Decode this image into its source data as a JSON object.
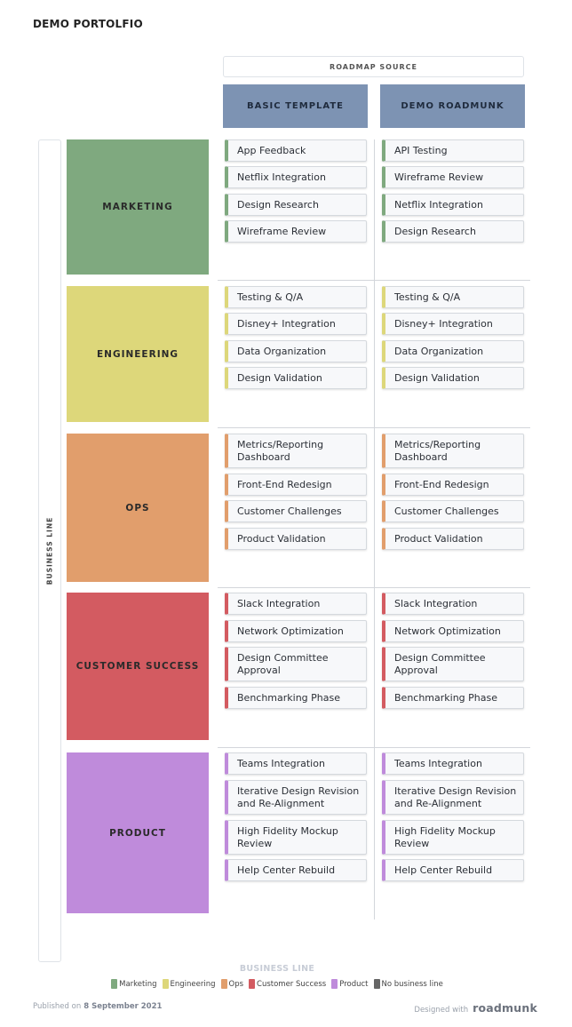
{
  "page_title": "DEMO PORTOLFIO",
  "source_header": "ROADMAP SOURCE",
  "columns": [
    "BASIC TEMPLATE",
    "DEMO ROADMUNK"
  ],
  "side_label": "BUSINESS LINE",
  "groups": [
    {
      "name": "MARKETING",
      "color": "#7fa97f",
      "left": [
        "App Feedback",
        "Netflix Integration",
        "Design Research",
        "Wireframe Review"
      ],
      "right": [
        "API Testing",
        "Wireframe Review",
        "Netflix Integration",
        "Design Research"
      ]
    },
    {
      "name": "ENGINEERING",
      "color": "#ddd77a",
      "left": [
        "Testing & Q/A",
        "Disney+ Integration",
        "Data Organization",
        "Design Validation"
      ],
      "right": [
        "Testing & Q/A",
        "Disney+ Integration",
        "Data Organization",
        "Design Validation"
      ]
    },
    {
      "name": "OPS",
      "color": "#e19e6c",
      "left": [
        "Metrics/Reporting Dashboard",
        "Front-End Redesign",
        "Customer Challenges",
        "Product Validation"
      ],
      "right": [
        "Metrics/Reporting Dashboard",
        "Front-End Redesign",
        "Customer Challenges",
        "Product Validation"
      ]
    },
    {
      "name": "CUSTOMER SUCCESS",
      "color": "#d35b61",
      "left": [
        "Slack Integration",
        "Network Optimization",
        "Design Committee Approval",
        "Benchmarking Phase"
      ],
      "right": [
        "Slack Integration",
        "Network Optimization",
        "Design Committee Approval",
        "Benchmarking Phase"
      ]
    },
    {
      "name": "PRODUCT",
      "color": "#bf8bdb",
      "left": [
        "Teams Integration",
        "Iterative Design Revision and Re-Alignment",
        "High Fidelity Mockup Review",
        "Help Center Rebuild"
      ],
      "right": [
        "Teams Integration",
        "Iterative Design Revision and Re-Alignment",
        "High Fidelity Mockup Review",
        "Help Center Rebuild"
      ]
    }
  ],
  "legend": {
    "title": "BUSINESS LINE",
    "items": [
      {
        "label": "Marketing",
        "color": "#7fa97f"
      },
      {
        "label": "Engineering",
        "color": "#ddd77a"
      },
      {
        "label": "Ops",
        "color": "#e19e6c"
      },
      {
        "label": "Customer Success",
        "color": "#d35b61"
      },
      {
        "label": "Product",
        "color": "#bf8bdb"
      },
      {
        "label": "No business line",
        "color": "#666666"
      }
    ]
  },
  "footer": {
    "published_label": "Published on",
    "published_date": "8 September 2021",
    "designed_with": "Designed with",
    "brand": "roadmunk"
  }
}
